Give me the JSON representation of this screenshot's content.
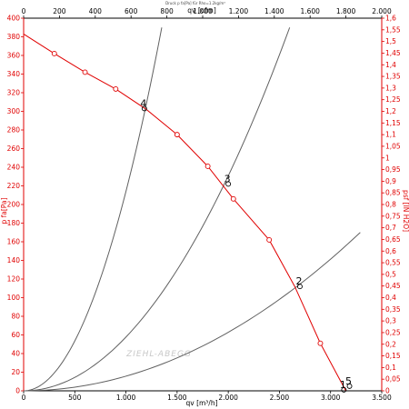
{
  "chart_data": {
    "type": "line",
    "title": "Druck p fa[Pa] für Rho=1.2kg/m³",
    "watermark": "ZIEHL-ABEGG",
    "x_bottom": {
      "label": "qv [m³/h]",
      "range": [
        0,
        3500
      ],
      "ticks": [
        "0",
        "500",
        "1.000",
        "1.500",
        "2.000",
        "2.500",
        "3.000",
        "3.500"
      ]
    },
    "x_top": {
      "label": "qv [cfm]",
      "range": [
        0,
        2000
      ],
      "ticks": [
        "0",
        "200",
        "400",
        "600",
        "800",
        "1.000",
        "1.200",
        "1.400",
        "1.600",
        "1.800",
        "2.000"
      ]
    },
    "y_left": {
      "label": "p fa[Pa]",
      "range": [
        0,
        400
      ],
      "ticks": [
        "0",
        "20",
        "40",
        "60",
        "80",
        "100",
        "120",
        "140",
        "160",
        "180",
        "200",
        "220",
        "240",
        "260",
        "280",
        "300",
        "320",
        "340",
        "360",
        "380",
        "400"
      ]
    },
    "y_right": {
      "label": "psf [IN H2O]",
      "range": [
        0,
        1.6
      ],
      "ticks": [
        "0",
        "0,05",
        "0,1",
        "0,15",
        "0,2",
        "0,25",
        "0,3",
        "0,35",
        "0,4",
        "0,45",
        "0,5",
        "0,55",
        "0,6",
        "0,65",
        "0,7",
        "0,75",
        "0,8",
        "0,85",
        "0,9",
        "0,95",
        "1",
        "1,05",
        "1,1",
        "1,15",
        "1,2",
        "1,25",
        "1,3",
        "1,35",
        "1,4",
        "1,45",
        "1,5",
        "1,55",
        "1,6"
      ]
    },
    "grid": false,
    "series": [
      {
        "name": "p fa[Pa]",
        "color": "#e00000",
        "x": [
          0,
          300,
          600,
          900,
          1200,
          1500,
          1800,
          2050,
          2400,
          2650,
          2900,
          3100,
          3150
        ],
        "y": [
          383,
          362,
          342,
          324,
          302,
          275,
          241,
          206,
          162,
          112,
          51,
          10,
          0
        ],
        "markers_x": [
          300,
          600,
          900,
          1500,
          1800,
          2050,
          2400,
          2900
        ]
      }
    ],
    "system_curves": [
      {
        "color": "#606060",
        "x": [
          0,
          1350
        ],
        "y": [
          0,
          390
        ]
      },
      {
        "color": "#606060",
        "x": [
          0,
          2600
        ],
        "y": [
          0,
          390
        ]
      },
      {
        "color": "#606060",
        "x": [
          0,
          3290
        ],
        "y": [
          0,
          170
        ]
      }
    ],
    "operating_points": [
      {
        "label": "1",
        "x": 3130,
        "y": 1
      },
      {
        "label": "2",
        "x": 2700,
        "y": 112
      },
      {
        "label": "3",
        "x": 2000,
        "y": 222
      },
      {
        "label": "4",
        "x": 1180,
        "y": 303
      },
      {
        "label": "5",
        "x": 3185,
        "y": 5
      }
    ]
  }
}
